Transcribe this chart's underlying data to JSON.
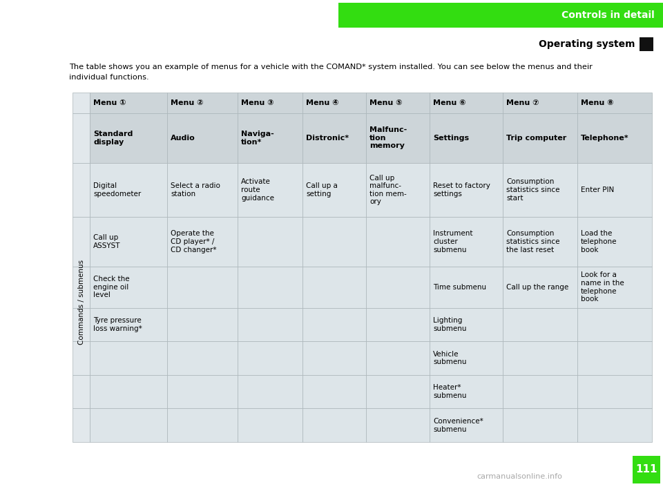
{
  "page_bg": "#ffffff",
  "header_green_color": "#33dd11",
  "header_text1": "Controls in detail",
  "header_text2": "Operating system",
  "black_square_color": "#111111",
  "intro_text1": "The table shows you an example of menus for a vehicle with the COMAND* system installed. You can see below the menus and their",
  "intro_text2": "individual functions.",
  "page_number": "111",
  "page_number_bg": "#33dd11",
  "table_header_bg": "#cdd5d9",
  "table_body_bg": "#dde5e9",
  "table_label_bg": "#e2e8ec",
  "table_border_color": "#aab4b8",
  "col_headers": [
    "Menu ①",
    "Menu ②",
    "Menu ③",
    "Menu ④",
    "Menu ⑤",
    "Menu ⑥",
    "Menu ⑦",
    "Menu ⑧"
  ],
  "row2_bold": [
    "Standard\ndisplay",
    "Audio",
    "Naviga-\ntion*",
    "Distronic*",
    "Malfunc-\ntion\nmemory",
    "Settings",
    "Trip computer",
    "Telephone*"
  ],
  "commands_label": "Commands / submenus",
  "data_rows": [
    [
      "Digital\nspeedometer",
      "Select a radio\nstation",
      "Activate\nroute\nguidance",
      "Call up a\nsetting",
      "Call up\nmalfunc-\ntion mem-\nory",
      "Reset to factory\nsettings",
      "Consumption\nstatistics since\nstart",
      "Enter PIN"
    ],
    [
      "Call up\nASSYST",
      "Operate the\nCD player* /\nCD changer*",
      "",
      "",
      "",
      "Instrument\ncluster\nsubmenu",
      "Consumption\nstatistics since\nthe last reset",
      "Load the\ntelephone\nbook"
    ],
    [
      "Check the\nengine oil\nlevel",
      "",
      "",
      "",
      "",
      "Time submenu",
      "Call up the range",
      "Look for a\nname in the\ntelephone\nbook"
    ],
    [
      "Tyre pressure\nloss warning*",
      "",
      "",
      "",
      "",
      "Lighting\nsubmenu",
      "",
      ""
    ],
    [
      "",
      "",
      "",
      "",
      "",
      "Vehicle\nsubmenu",
      "",
      ""
    ],
    [
      "",
      "",
      "",
      "",
      "",
      "Heater*\nsubmenu",
      "",
      ""
    ],
    [
      "",
      "",
      "",
      "",
      "",
      "Convenience*\nsubmenu",
      "",
      ""
    ]
  ]
}
